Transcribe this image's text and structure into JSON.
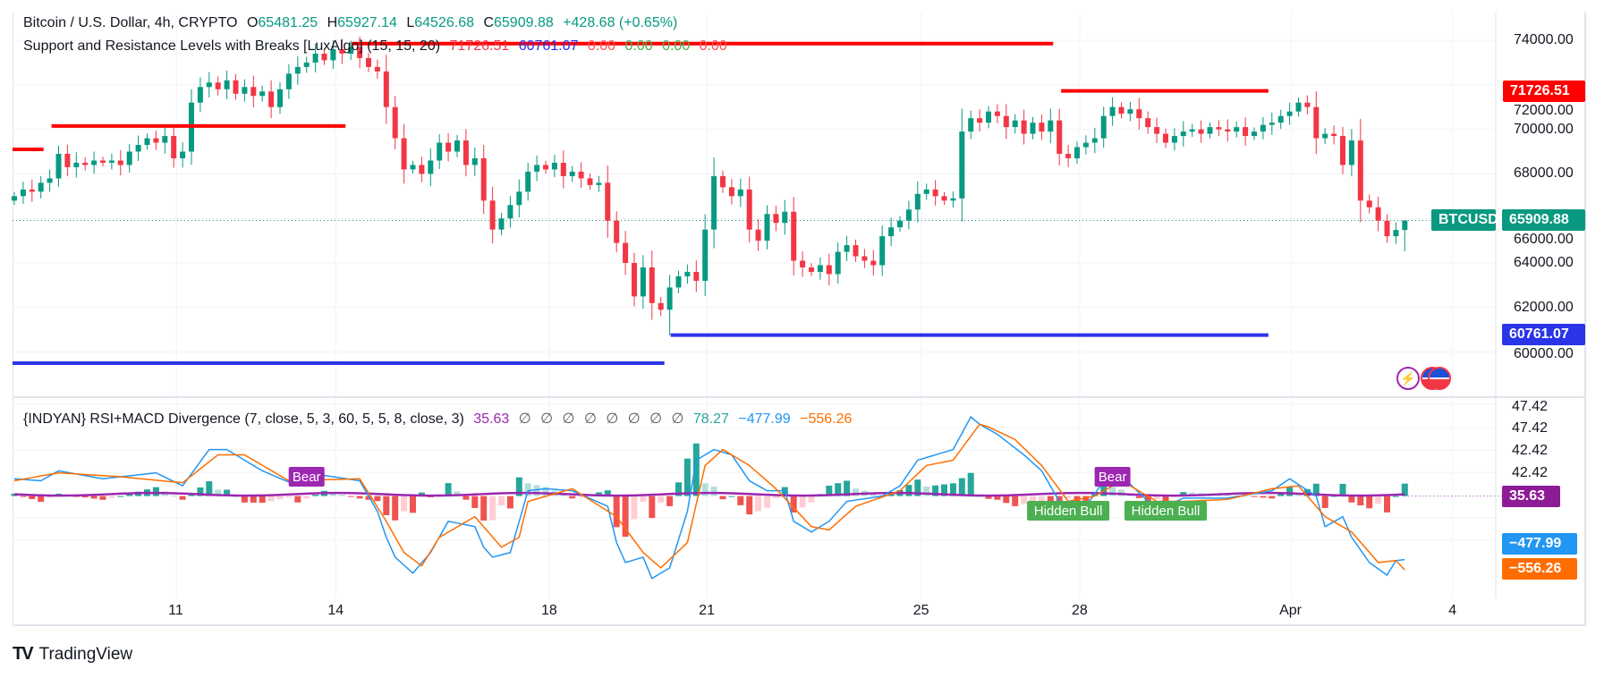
{
  "legend": {
    "symbol": "Bitcoin / U.S. Dollar, 4h, CRYPTO",
    "o_label": "O",
    "o": "65481.25",
    "h_label": "H",
    "h": "65927.14",
    "l_label": "L",
    "l": "64526.68",
    "c_label": "C",
    "c": "65909.88",
    "change": "+428.68 (+0.65%)",
    "sr_name": "Support and Resistance Levels with Breaks [LuxAlgo] (15, 15, 20)",
    "sr_values": [
      "71726.51",
      "60761.07",
      "0.00",
      "0.00",
      "0.00",
      "0.00"
    ],
    "ind_name": "{INDYAN} RSI+MACD Divergence (7, close, 5, 3, 60, 5, 5, 8, close, 3)",
    "ind_rsi": "35.63",
    "ind_empty": [
      "∅",
      "∅",
      "∅",
      "∅",
      "∅",
      "∅",
      "∅",
      "∅"
    ],
    "ind_v1": "78.27",
    "ind_macd": "−477.99",
    "ind_signal": "−556.26"
  },
  "price_axis": {
    "ticks": [
      "74000.00",
      "72000.00",
      "70000.00",
      "68000.00",
      "66000.00",
      "64000.00",
      "62000.00",
      "60000.00"
    ],
    "tag_resistance": "71726.51",
    "tag_symbol": "BTCUSD",
    "tag_last": "65909.88",
    "tag_support": "60761.07"
  },
  "indicator_axis": {
    "ticks": [
      "47.42",
      "47.42",
      "42.42",
      "42.42"
    ],
    "tag_rsi": "35.63",
    "tag_macd": "−477.99",
    "tag_signal": "−556.26"
  },
  "time_axis": [
    {
      "label": "11",
      "index": 18.3
    },
    {
      "label": "14",
      "index": 36.3
    },
    {
      "label": "18",
      "index": 60.4
    },
    {
      "label": "21",
      "index": 78.2
    },
    {
      "label": "25",
      "index": 102.4
    },
    {
      "label": "28",
      "index": 120.3
    },
    {
      "label": "Apr",
      "index": 144.2
    },
    {
      "label": "4",
      "index": 162.4
    }
  ],
  "branding": {
    "logo": "TradingView"
  },
  "colors": {
    "up": "#089981",
    "down": "#f23645",
    "resistance": "#ff0000",
    "support": "#2a35e8",
    "macd": "#2196f3",
    "signal": "#ff6d00",
    "rsi": "#9c27b0"
  },
  "chart_data": [
    {
      "type": "candlestick",
      "title": "Bitcoin / U.S. Dollar, 4h, CRYPTO",
      "ylim": [
        58800,
        74800
      ],
      "first_open": 66800,
      "closes": [
        67000,
        67300,
        67200,
        67600,
        67800,
        68900,
        68300,
        68500,
        68400,
        68600,
        68500,
        68600,
        68400,
        69000,
        69300,
        69600,
        69400,
        69700,
        68700,
        69000,
        71200,
        71900,
        72100,
        71800,
        72200,
        71600,
        71900,
        71500,
        71700,
        71000,
        71800,
        72500,
        72800,
        73000,
        73400,
        73100,
        73600,
        73400,
        73700,
        73200,
        72800,
        72600,
        71000,
        69600,
        68200,
        68400,
        68000,
        68600,
        69400,
        69000,
        69500,
        68400,
        68700,
        66800,
        65500,
        66000,
        66600,
        67200,
        68100,
        68400,
        68200,
        68500,
        67900,
        68100,
        67800,
        67500,
        67600,
        65900,
        64900,
        64000,
        62500,
        63800,
        62200,
        61900,
        62900,
        63400,
        63600,
        63200,
        65500,
        67900,
        67400,
        67000,
        67300,
        65500,
        65000,
        66200,
        65800,
        66300,
        64100,
        63800,
        63600,
        63900,
        63500,
        64500,
        64800,
        64300,
        64100,
        63900,
        65200,
        65600,
        65900,
        66400,
        67100,
        67300,
        67000,
        66800,
        66900,
        69900,
        70500,
        70300,
        70800,
        70600,
        70100,
        70400,
        69800,
        70300,
        69900,
        70400,
        68900,
        68700,
        69200,
        69400,
        69600,
        70600,
        71000,
        70700,
        70900,
        70500,
        70100,
        69800,
        69400,
        69700,
        69900,
        70000,
        69800,
        70100,
        70000,
        69900,
        70100,
        69700,
        69900,
        70200,
        70300,
        70600,
        70800,
        71200,
        71000,
        69600,
        69800,
        69700,
        68400,
        69500,
        66800,
        66500,
        65900,
        65200,
        65481.25,
        65909.88
      ],
      "overrides": {
        "74": {
          "l": 60761.07
        },
        "157": {
          "o": 65481.25,
          "h": 65927.14,
          "l": 64526.68,
          "c": 65909.88
        }
      },
      "levels": [
        {
          "kind": "resistance",
          "price": 69100,
          "from": -0.2,
          "to": 3.3
        },
        {
          "kind": "resistance",
          "price": 70150,
          "from": 4.2,
          "to": 37.4
        },
        {
          "kind": "resistance",
          "price": 73850,
          "from": 38.1,
          "to": 117.3
        },
        {
          "kind": "resistance",
          "price": 71726.51,
          "from": 118.2,
          "to": 141.6
        },
        {
          "kind": "support",
          "price": 59500,
          "from": -0.2,
          "to": 73.4
        },
        {
          "kind": "support",
          "price": 60761.07,
          "from": 74.1,
          "to": 141.6
        }
      ],
      "last_price": 65909.88
    },
    {
      "type": "line",
      "title": "{INDYAN} RSI+MACD Divergence",
      "macd_keypoints": [
        [
          0,
          130
        ],
        [
          3,
          115
        ],
        [
          5,
          190
        ],
        [
          10,
          130
        ],
        [
          16,
          175
        ],
        [
          19,
          77
        ],
        [
          22,
          350
        ],
        [
          24,
          350
        ],
        [
          28,
          190
        ],
        [
          32,
          77
        ],
        [
          35,
          155
        ],
        [
          39,
          115
        ],
        [
          41,
          -115
        ],
        [
          42,
          -310
        ],
        [
          43,
          -460
        ],
        [
          45,
          -580
        ],
        [
          47,
          -425
        ],
        [
          49,
          -190
        ],
        [
          52,
          -230
        ],
        [
          53,
          -385
        ],
        [
          54,
          -460
        ],
        [
          56,
          -425
        ],
        [
          58,
          40
        ],
        [
          60,
          55
        ],
        [
          63,
          40
        ],
        [
          67,
          -77
        ],
        [
          68,
          -350
        ],
        [
          69,
          -500
        ],
        [
          71,
          -460
        ],
        [
          72,
          -620
        ],
        [
          74,
          -540
        ],
        [
          76,
          -115
        ],
        [
          77,
          270
        ],
        [
          79,
          350
        ],
        [
          81,
          310
        ],
        [
          83,
          115
        ],
        [
          85,
          40
        ],
        [
          87,
          40
        ],
        [
          88,
          -190
        ],
        [
          90,
          -270
        ],
        [
          92,
          -190
        ],
        [
          94,
          -40
        ],
        [
          98,
          0
        ],
        [
          100,
          77
        ],
        [
          102,
          270
        ],
        [
          104,
          310
        ],
        [
          106,
          350
        ],
        [
          108,
          595
        ],
        [
          109,
          540
        ],
        [
          111,
          465
        ],
        [
          114,
          310
        ],
        [
          116,
          190
        ],
        [
          118,
          -40
        ],
        [
          121,
          -77
        ],
        [
          123,
          115
        ],
        [
          125,
          155
        ],
        [
          128,
          -40
        ],
        [
          130,
          -77
        ],
        [
          132,
          -15
        ],
        [
          137,
          -15
        ],
        [
          142,
          40
        ],
        [
          144,
          130
        ],
        [
          147,
          0
        ],
        [
          148,
          -230
        ],
        [
          150,
          -155
        ],
        [
          151,
          -310
        ],
        [
          153,
          -500
        ],
        [
          155,
          -595
        ],
        [
          156,
          -485
        ],
        [
          157,
          -477.99
        ]
      ],
      "signal_keypoints": [
        [
          0,
          115
        ],
        [
          5,
          175
        ],
        [
          12,
          145
        ],
        [
          19,
          100
        ],
        [
          23,
          310
        ],
        [
          26,
          310
        ],
        [
          31,
          115
        ],
        [
          39,
          130
        ],
        [
          42,
          -190
        ],
        [
          44,
          -425
        ],
        [
          46,
          -525
        ],
        [
          48,
          -310
        ],
        [
          52,
          -155
        ],
        [
          55,
          -385
        ],
        [
          57,
          -310
        ],
        [
          58,
          -40
        ],
        [
          63,
          55
        ],
        [
          68,
          -155
        ],
        [
          71,
          -425
        ],
        [
          73,
          -540
        ],
        [
          76,
          -350
        ],
        [
          78,
          230
        ],
        [
          80,
          350
        ],
        [
          83,
          230
        ],
        [
          86,
          55
        ],
        [
          90,
          -230
        ],
        [
          92,
          -255
        ],
        [
          95,
          -77
        ],
        [
          100,
          40
        ],
        [
          103,
          230
        ],
        [
          106,
          270
        ],
        [
          109,
          540
        ],
        [
          110,
          520
        ],
        [
          113,
          425
        ],
        [
          116,
          230
        ],
        [
          119,
          -40
        ],
        [
          122,
          0
        ],
        [
          125,
          115
        ],
        [
          129,
          -40
        ],
        [
          132,
          -40
        ],
        [
          137,
          -25
        ],
        [
          142,
          55
        ],
        [
          145,
          77
        ],
        [
          148,
          -155
        ],
        [
          151,
          -270
        ],
        [
          154,
          -500
        ],
        [
          156,
          -485
        ],
        [
          157,
          -556.26
        ]
      ],
      "rsi_last": 35.63,
      "signals": [
        {
          "label": "Bear",
          "index": 33,
          "kind": "bear"
        },
        {
          "label": "Bear",
          "index": 124,
          "kind": "bear"
        },
        {
          "label": "Hidden Bull",
          "index": 119,
          "kind": "bull"
        },
        {
          "label": "Hidden Bull",
          "index": 130,
          "kind": "bull"
        }
      ]
    }
  ]
}
